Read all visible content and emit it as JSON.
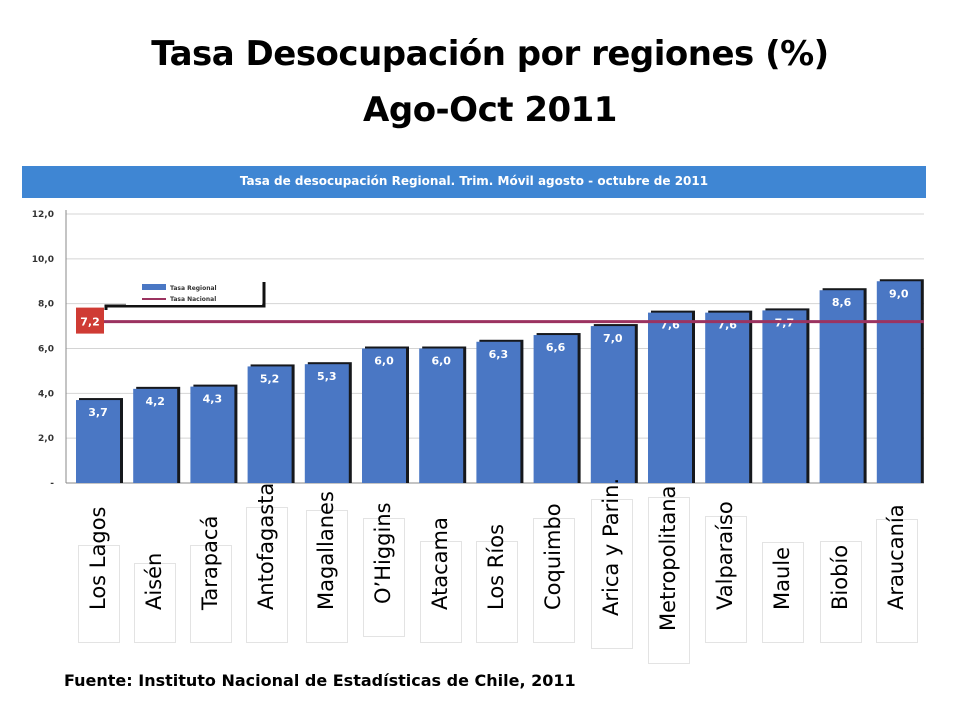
{
  "slide": {
    "title_line1": "Tasa Desocupación por regiones (%)",
    "title_line2": "Ago-Oct 2011",
    "source": "Fuente: Instituto Nacional de Estadísticas de Chile, 2011"
  },
  "chart_data": {
    "type": "bar",
    "title": "Tasa de desocupación Regional.  Trim. Móvil  agosto - octubre de 2011",
    "categories": [
      "Los Lagos",
      "Aisén",
      "Tarapacá",
      "Antofagasta",
      "Magallanes",
      "O’Higgins",
      "Atacama",
      "Los Ríos",
      "Coquimbo",
      "Arica y Parin.",
      "Metropolitana",
      "Valparaíso",
      "Maule",
      "Biobío",
      "Araucanía"
    ],
    "series": [
      {
        "name": "Tasa Regional",
        "values": [
          3.7,
          4.2,
          4.3,
          5.2,
          5.3,
          6.0,
          6.0,
          6.3,
          6.6,
          7.0,
          7.6,
          7.6,
          7.7,
          8.6,
          9.0
        ]
      }
    ],
    "value_labels": [
      "3,7",
      "4,2",
      "4,3",
      "5,2",
      "5,3",
      "6,0",
      "6,0",
      "6,3",
      "6,6",
      "7,0",
      "7,6",
      "7,6",
      "7,7",
      "8,6",
      "9,0"
    ],
    "reference_line": {
      "name": "Tasa Nacional",
      "value": 7.2,
      "label": "7,2"
    },
    "ylim": [
      0,
      12
    ],
    "y_ticks": [
      "-",
      "2,0",
      "4,0",
      "6,0",
      "8,0",
      "10,0",
      "12,0"
    ],
    "y_tick_values": [
      0,
      2,
      4,
      6,
      8,
      10,
      12
    ],
    "grid": true,
    "legend_position": "top-left",
    "colors": {
      "bar": "#4a77c4",
      "bar_shadow": "#16181c",
      "national_line": "#9b3360",
      "national_label_bg": "#cf3b34",
      "header": "#3f86d3"
    }
  }
}
